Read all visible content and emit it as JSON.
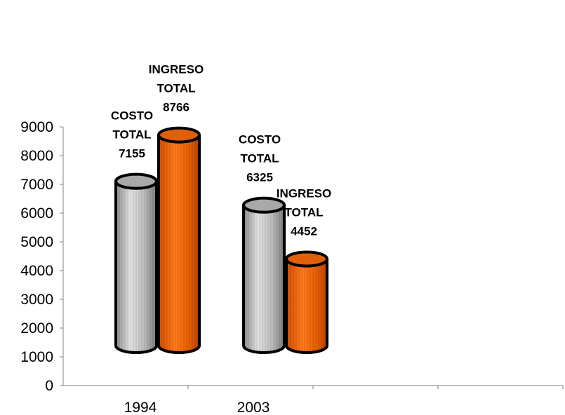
{
  "chart_data": {
    "type": "bar",
    "style": "3d-cylinder",
    "categories": [
      "1994",
      "2003"
    ],
    "series": [
      {
        "name": "COSTO TOTAL",
        "values": [
          7155,
          6325
        ],
        "label_lines": [
          "COSTO",
          "TOTAL"
        ],
        "color": "#b8b8b8"
      },
      {
        "name": "INGRESO TOTAL",
        "values": [
          8766,
          4452
        ],
        "label_lines": [
          "INGRESO",
          "TOTAL"
        ],
        "color": "#f26c12"
      }
    ],
    "ylim": [
      0,
      9000
    ],
    "yticks": [
      "0",
      "1000",
      "2000",
      "3000",
      "4000",
      "5000",
      "6000",
      "7000",
      "8000",
      "9000"
    ],
    "grid": false,
    "legend": "none",
    "title": "",
    "xlabel": "",
    "ylabel": ""
  }
}
